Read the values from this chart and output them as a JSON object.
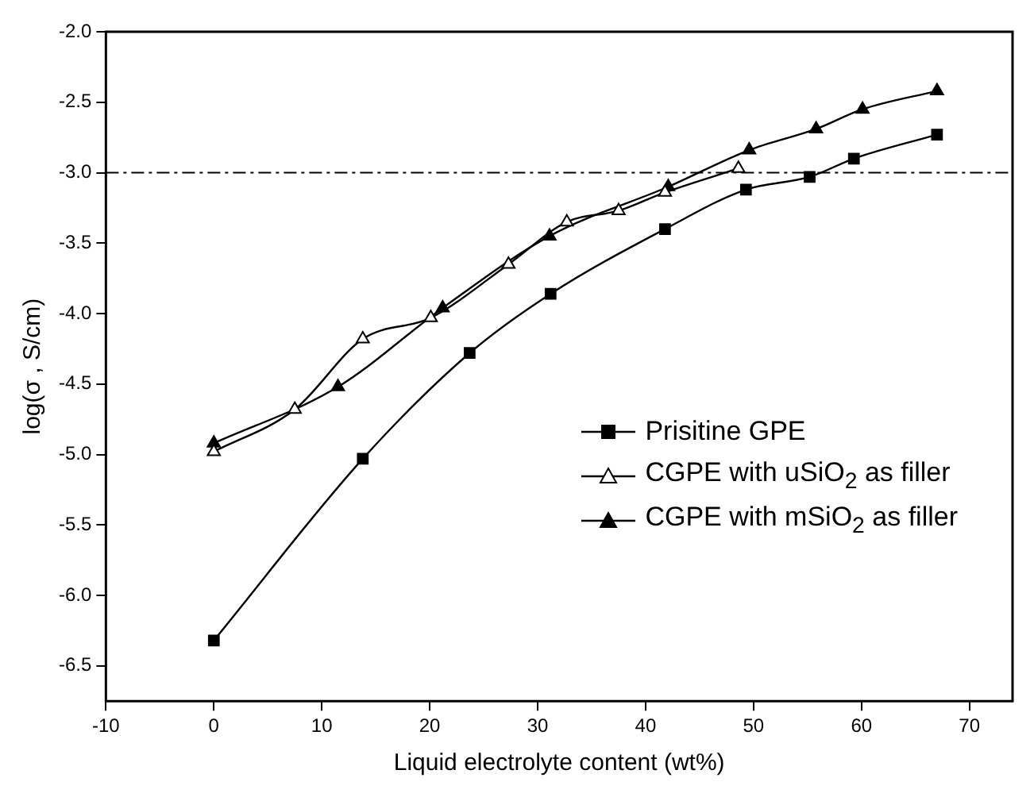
{
  "chart_data": {
    "type": "line",
    "xlabel": "Liquid electrolyte content (wt%)",
    "ylabel": "log(σ , S/cm)",
    "xlim": [
      -10,
      74
    ],
    "xticks": [
      -10,
      0,
      10,
      20,
      30,
      40,
      50,
      60,
      70
    ],
    "ylim": [
      -6.75,
      -2
    ],
    "yticks": [
      {
        "value": -6.5,
        "label": "-6.5"
      },
      {
        "value": -6,
        "label": "-6.0"
      },
      {
        "value": -5.5,
        "label": "-5.5"
      },
      {
        "value": -5,
        "label": "-5.0"
      },
      {
        "value": -4.5,
        "label": "-4.5"
      },
      {
        "value": -4,
        "label": "-4.0"
      },
      {
        "value": -3.5,
        "label": "-3.5"
      },
      {
        "value": -3,
        "label": "-3.0"
      },
      {
        "value": -2.5,
        "label": "-2.5"
      },
      {
        "value": -2,
        "label": "-2.0"
      }
    ],
    "grid": false,
    "legend": "right",
    "line_style": "solid",
    "ref_lines": [
      {
        "axis": "y",
        "value": -3,
        "line_style": "dashdot",
        "color": "#000000"
      }
    ],
    "series": [
      {
        "name": "Prisitine GPE",
        "color": "#000000",
        "marker": "square",
        "x": [
          0,
          13.8,
          23.7,
          31.2,
          41.8,
          49.3,
          55.2,
          59.3,
          67.0
        ],
        "values": [
          -6.32,
          -5.03,
          -4.28,
          -3.86,
          -3.4,
          -3.12,
          -3.03,
          -2.9,
          -2.73
        ]
      },
      {
        "name": "CGPE with uSiO$_{2}$ as filler",
        "color": "#000000",
        "marker": "triangle-open",
        "x": [
          0,
          7.5,
          13.8,
          20.1,
          27.3,
          32.7,
          37.5,
          41.8,
          48.6
        ],
        "values": [
          -4.98,
          -4.68,
          -4.18,
          -4.03,
          -3.65,
          -3.35,
          -3.27,
          -3.14,
          -2.97
        ]
      },
      {
        "name": "CGPE with mSiO$_{2}$ as filler",
        "color": "#000000",
        "marker": "triangle",
        "x": [
          0,
          11.5,
          21.2,
          31.1,
          42.1,
          49.6,
          55.8,
          60.1,
          67.0
        ],
        "values": [
          -4.92,
          -4.52,
          -3.96,
          -3.45,
          -3.1,
          -2.84,
          -2.69,
          -2.55,
          -2.42
        ]
      }
    ]
  }
}
